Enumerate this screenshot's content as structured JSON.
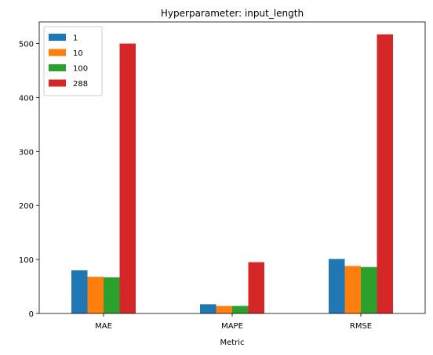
{
  "chart_data": {
    "type": "bar",
    "title": "Hyperparameter: input_length",
    "xlabel": "Metric",
    "ylabel": "",
    "categories": [
      "MAE",
      "MAPE",
      "RMSE"
    ],
    "ylim": [
      0,
      540
    ],
    "yticks": [
      0,
      100,
      200,
      300,
      400,
      500
    ],
    "grid": false,
    "legend_position": "top-left",
    "series": [
      {
        "name": "1",
        "color": "#1f77b4",
        "values": [
          80,
          17,
          101
        ]
      },
      {
        "name": "10",
        "color": "#ff7f0e",
        "values": [
          68,
          14,
          88
        ]
      },
      {
        "name": "100",
        "color": "#2ca02c",
        "values": [
          67,
          14,
          86
        ]
      },
      {
        "name": "288",
        "color": "#d62728",
        "values": [
          500,
          95,
          517
        ]
      }
    ]
  }
}
